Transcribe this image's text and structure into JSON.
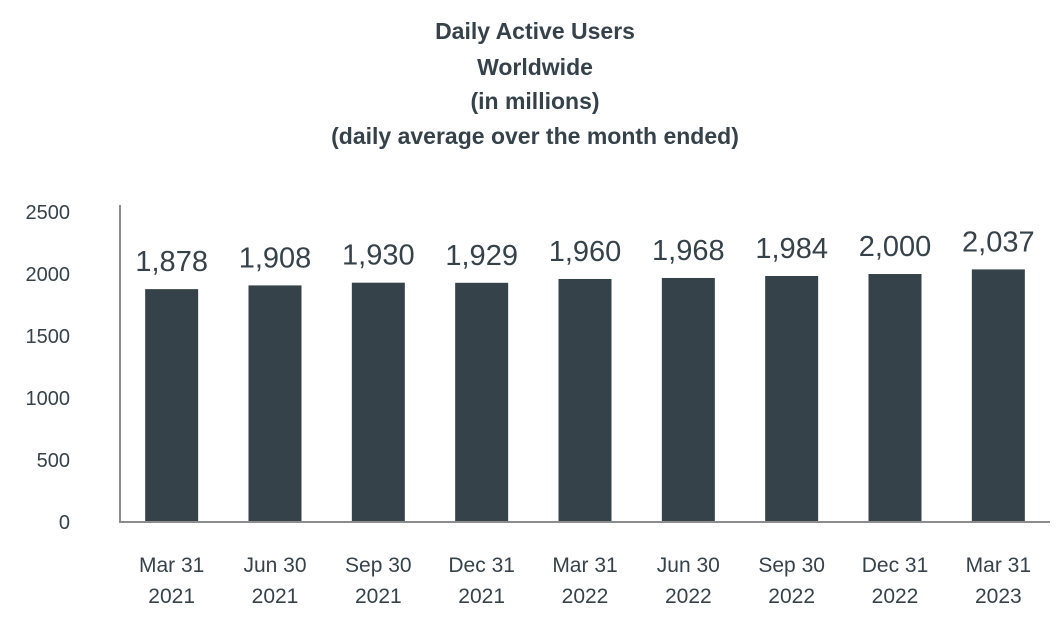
{
  "colors": {
    "bar": "#36424a",
    "text": "#36424a",
    "axis": "#8c8c8c",
    "background": "#ffffff"
  },
  "chart_data": {
    "type": "bar",
    "title_lines": [
      "Daily Active Users",
      "Worldwide",
      "(in millions)",
      "(daily average over the month ended)"
    ],
    "categories": [
      [
        "Mar 31",
        "2021"
      ],
      [
        "Jun 30",
        "2021"
      ],
      [
        "Sep 30",
        "2021"
      ],
      [
        "Dec 31",
        "2021"
      ],
      [
        "Mar 31",
        "2022"
      ],
      [
        "Jun 30",
        "2022"
      ],
      [
        "Sep 30",
        "2022"
      ],
      [
        "Dec 31",
        "2022"
      ],
      [
        "Mar 31",
        "2023"
      ]
    ],
    "values": [
      1878,
      1908,
      1930,
      1929,
      1960,
      1968,
      1984,
      2000,
      2037
    ],
    "data_labels": [
      "1,878",
      "1,908",
      "1,930",
      "1,929",
      "1,960",
      "1,968",
      "1,984",
      "2,000",
      "2,037"
    ],
    "yticks": [
      0,
      500,
      1000,
      1500,
      2000,
      2500
    ],
    "ylim": [
      0,
      2500
    ],
    "xlabel": "",
    "ylabel": "",
    "grid": false,
    "legend": "none"
  }
}
